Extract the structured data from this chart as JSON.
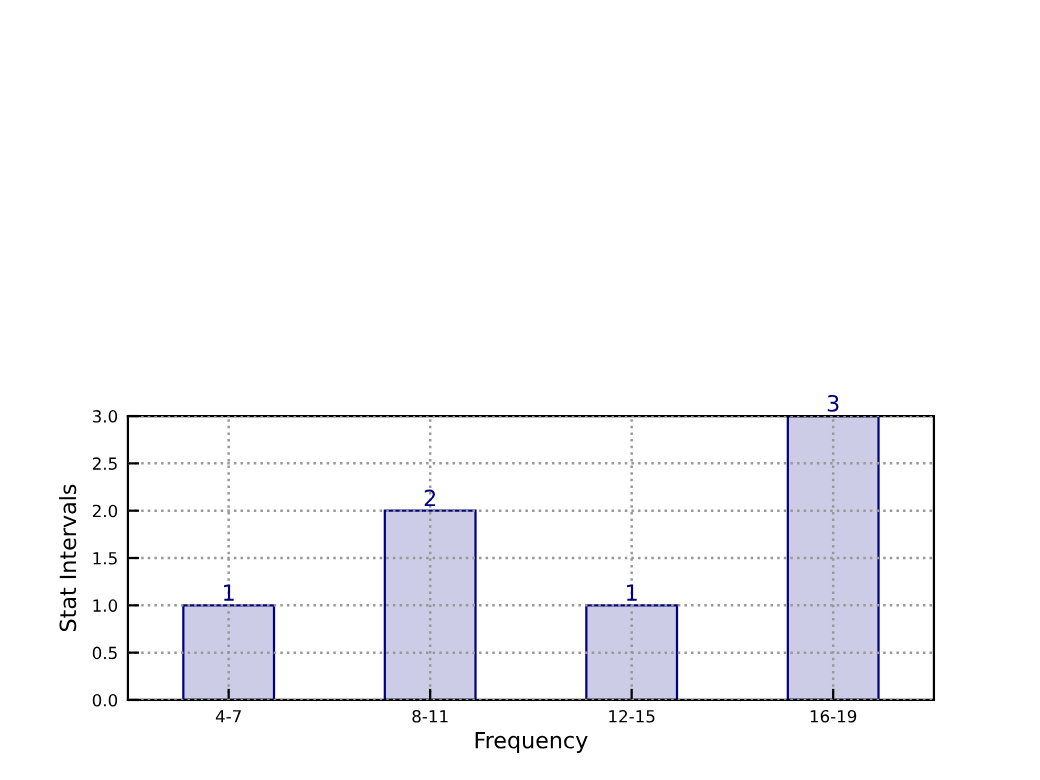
{
  "chart_data": {
    "type": "bar",
    "xlabel": "Frequency",
    "ylabel": "Stat Intervals",
    "categories": [
      "4-7",
      "8-11",
      "12-15",
      "16-19"
    ],
    "values": [
      1,
      2,
      1,
      3
    ],
    "color": "#cccce6",
    "ylim": [
      0,
      3
    ],
    "yticks": [
      {
        "value": 0,
        "label": "0.0"
      },
      0.5,
      {
        "value": 1,
        "label": "1.0"
      },
      1.5,
      {
        "value": 2,
        "label": "2.0"
      },
      2.5,
      {
        "value": 3,
        "label": "3.0"
      }
    ],
    "grid": true,
    "data_labels": true
  }
}
